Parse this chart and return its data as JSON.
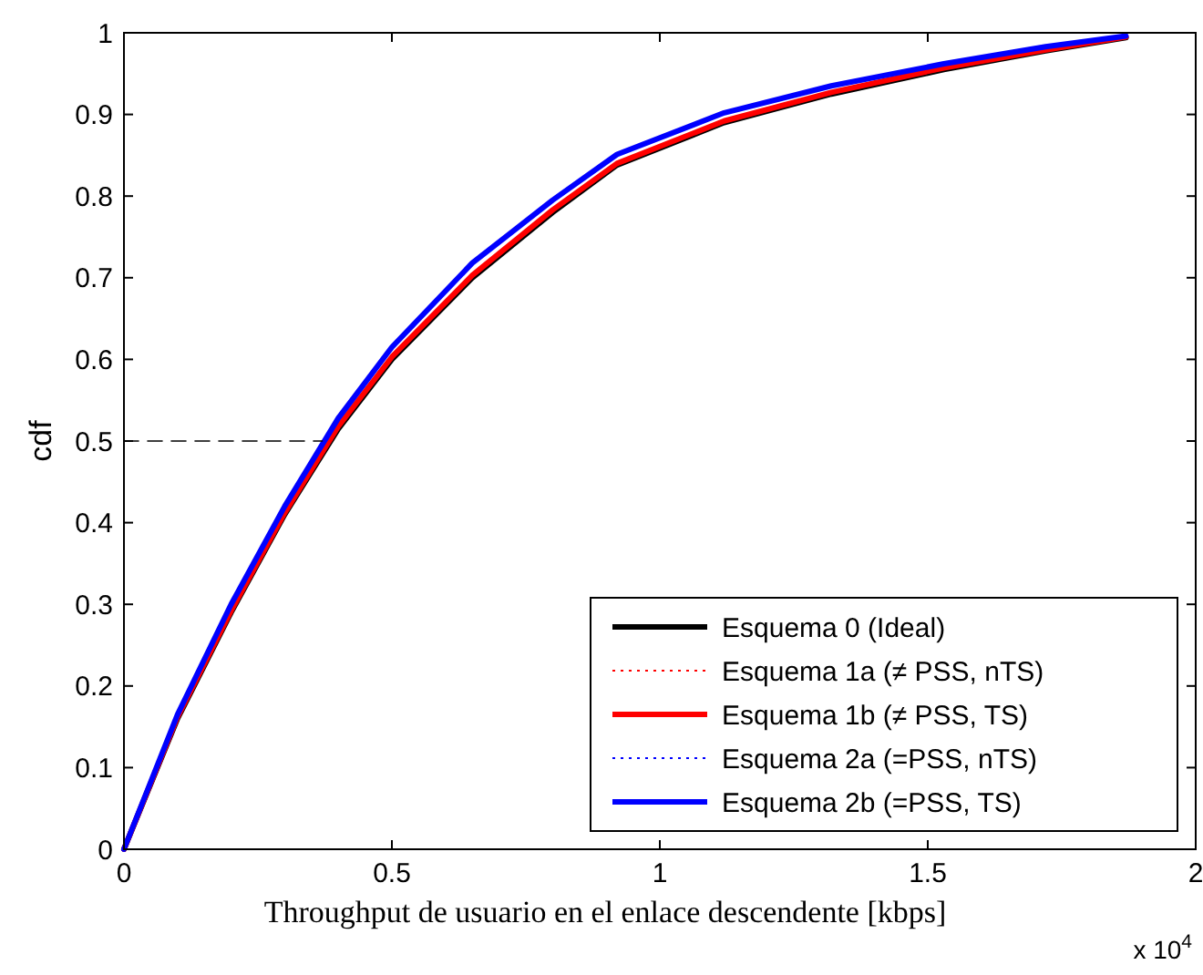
{
  "chart_data": {
    "type": "line",
    "ylabel": "cdf",
    "xlabel": "Throughput de usuario en el enlace descendente [kbps]",
    "annotations": [
      "x 10$^{4}$"
    ],
    "xlim": [
      0,
      2
    ],
    "xticks": [
      0,
      0.5,
      1,
      1.5,
      2
    ],
    "ylim": [
      0,
      1
    ],
    "yticks": [
      0,
      0.1,
      0.2,
      0.3,
      0.4,
      0.5,
      0.6,
      0.7,
      0.8,
      0.9,
      1
    ],
    "grid": false,
    "legend": "bottom right",
    "series": [
      {
        "name": "Esquema 0 (Ideal)",
        "color": "#000000",
        "line_style": "solid",
        "x": [
          0,
          0.1,
          0.2,
          0.3,
          0.4,
          0.5,
          0.65,
          0.8,
          0.92,
          1.12,
          1.32,
          1.53,
          1.72,
          1.87
        ],
        "values": [
          0,
          0.16,
          0.29,
          0.41,
          0.515,
          0.6,
          0.7,
          0.78,
          0.838,
          0.89,
          0.925,
          0.955,
          0.978,
          0.994
        ]
      },
      {
        "name": "Esquema 1a (≠ PSS, nTS)",
        "color": "#ff0000",
        "line_style": "dotted",
        "values": [
          null,
          null,
          null,
          null,
          null,
          null,
          null,
          null,
          null,
          null,
          null,
          null,
          null,
          null
        ]
      },
      {
        "name": "Esquema 1b (≠ PSS, TS)",
        "color": "#ff0000",
        "line_style": "solid",
        "x": [
          0,
          0.1,
          0.2,
          0.3,
          0.4,
          0.5,
          0.65,
          0.8,
          0.92,
          1.12,
          1.32,
          1.53,
          1.72,
          1.87
        ],
        "values": [
          0,
          0.162,
          0.292,
          0.412,
          0.518,
          0.603,
          0.703,
          0.783,
          0.84,
          0.892,
          0.927,
          0.957,
          0.979,
          0.995
        ]
      },
      {
        "name": "Esquema 2a (=PSS, nTS)",
        "color": "#0000ff",
        "line_style": "dotted",
        "values": [
          null,
          null,
          null,
          null,
          null,
          null,
          null,
          null,
          null,
          null,
          null,
          null,
          null,
          null
        ]
      },
      {
        "name": "Esquema 2b (=PSS, TS)",
        "color": "#0000ff",
        "line_style": "solid",
        "x": [
          0,
          0.1,
          0.2,
          0.3,
          0.4,
          0.5,
          0.65,
          0.8,
          0.92,
          1.12,
          1.32,
          1.53,
          1.72,
          1.87
        ],
        "values": [
          0,
          0.165,
          0.3,
          0.42,
          0.528,
          0.615,
          0.718,
          0.795,
          0.851,
          0.902,
          0.935,
          0.962,
          0.983,
          0.996
        ]
      },
      {
        "type": "line",
        "color": "#000000",
        "line_style": "dashed",
        "x": [
          0,
          0.37
        ],
        "values": [
          0.5,
          0.5
        ]
      }
    ]
  }
}
